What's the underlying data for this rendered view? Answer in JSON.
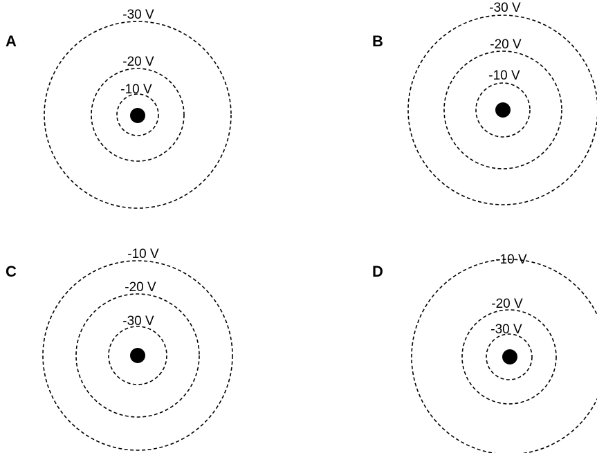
{
  "panels": [
    {
      "letter": "A",
      "rings": [
        {
          "label": "-10 V"
        },
        {
          "label": "-20 V"
        },
        {
          "label": "-30 V"
        }
      ]
    },
    {
      "letter": "B",
      "rings": [
        {
          "label": "-10 V"
        },
        {
          "label": "-20 V"
        },
        {
          "label": "-30 V"
        }
      ]
    },
    {
      "letter": "C",
      "rings": [
        {
          "label": "-30 V"
        },
        {
          "label": "-20 V"
        },
        {
          "label": "-10 V"
        }
      ]
    },
    {
      "letter": "D",
      "rings": [
        {
          "label": "-30 V"
        },
        {
          "label": "-20 V"
        },
        {
          "label": "-10 V"
        }
      ]
    }
  ],
  "colors": {
    "line": "#000000",
    "charge": "#000000",
    "background": "#ffffff"
  }
}
